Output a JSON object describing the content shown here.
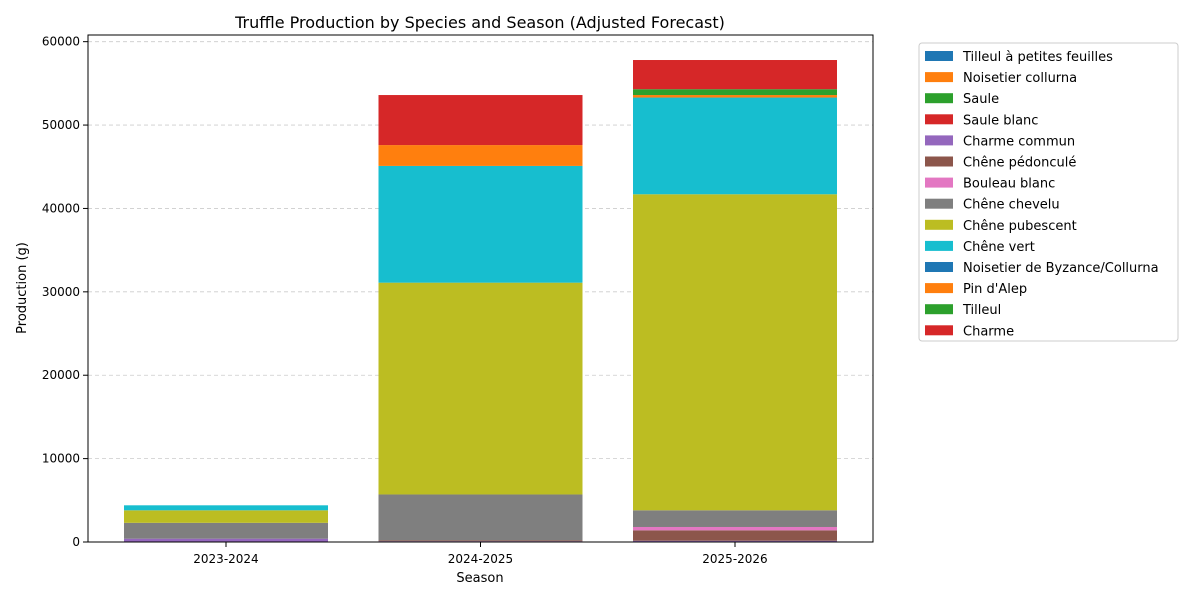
{
  "chart_data": {
    "type": "bar",
    "stacked": true,
    "title": "Truffle Production by Species and Season (Adjusted Forecast)",
    "xlabel": "Season",
    "ylabel": "Production (g)",
    "ylim": [
      0,
      60800
    ],
    "yticks": [
      0,
      10000,
      20000,
      30000,
      40000,
      50000,
      60000
    ],
    "ytick_labels": [
      "0",
      "10000",
      "20000",
      "30000",
      "40000",
      "50000",
      "60000"
    ],
    "grid": "y-dashed",
    "legend_position": "outside-right",
    "categories": [
      "2023-2024",
      "2024-2025",
      "2025-2026"
    ],
    "series": [
      {
        "name": "Tilleul à petites feuilles",
        "color": "#1f77b4",
        "values": [
          0,
          0,
          0
        ]
      },
      {
        "name": "Noisetier collurna",
        "color": "#ff7f0e",
        "values": [
          0,
          0,
          50
        ]
      },
      {
        "name": "Saule",
        "color": "#2ca02c",
        "values": [
          0,
          0,
          0
        ]
      },
      {
        "name": "Saule blanc",
        "color": "#d62728",
        "values": [
          0,
          0,
          0
        ]
      },
      {
        "name": "Charme commun",
        "color": "#9467bd",
        "values": [
          400,
          100,
          100
        ]
      },
      {
        "name": "Chêne pédonculé",
        "color": "#8c564b",
        "values": [
          0,
          100,
          1250
        ]
      },
      {
        "name": "Bouleau blanc",
        "color": "#e377c2",
        "values": [
          0,
          0,
          400
        ]
      },
      {
        "name": "Chêne chevelu",
        "color": "#7f7f7f",
        "values": [
          1900,
          5500,
          2000
        ]
      },
      {
        "name": "Chêne pubescent",
        "color": "#bcbd22",
        "values": [
          1500,
          25400,
          37900
        ]
      },
      {
        "name": "Chêne vert",
        "color": "#17becf",
        "values": [
          600,
          14000,
          11600
        ]
      },
      {
        "name": "Noisetier de Byzance/Collurna",
        "color": "#1f77b4",
        "values": [
          0,
          0,
          0
        ]
      },
      {
        "name": "Pin d'Alep",
        "color": "#ff7f0e",
        "values": [
          0,
          2500,
          300
        ]
      },
      {
        "name": "Tilleul",
        "color": "#2ca02c",
        "values": [
          0,
          0,
          700
        ]
      },
      {
        "name": "Charme",
        "color": "#d62728",
        "values": [
          0,
          6000,
          3500
        ]
      }
    ]
  }
}
